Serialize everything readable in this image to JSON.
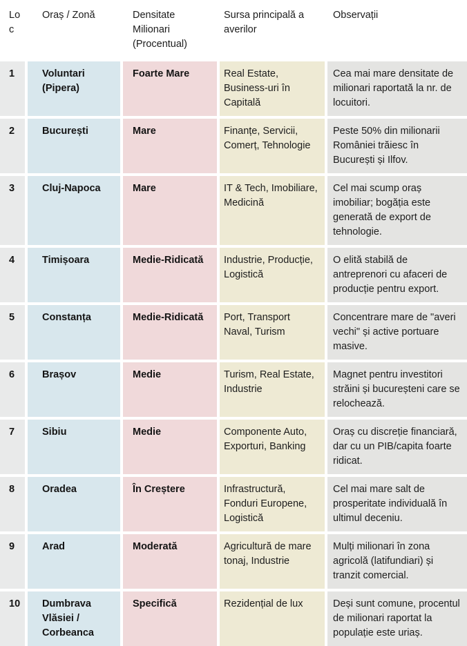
{
  "colors": {
    "rank_bg": "#e9eaea",
    "city_bg": "#d8e7ed",
    "density_bg": "#f0d9da",
    "source_bg": "#eeead4",
    "notes_bg": "#e4e4e2",
    "text": "#1d1d1d"
  },
  "table": {
    "headers": {
      "rank": "Loc",
      "city": "Oraș / Zonă",
      "density": "Densitate Milionari (Procentual)",
      "source": "Sursa principală a averilor",
      "notes": "Observații"
    },
    "rows": [
      {
        "rank": "1",
        "city": "Voluntari (Pipera)",
        "density": "Foarte Mare",
        "source": "Real Estate, Business-uri în Capitală",
        "notes": "Cea mai mare densitate de milionari raportată la nr. de locuitori."
      },
      {
        "rank": "2",
        "city": "București",
        "density": "Mare",
        "source": "Finanțe, Servicii, Comerț, Tehnologie",
        "notes": "Peste 50% din milionarii României trăiesc în București și Ilfov."
      },
      {
        "rank": "3",
        "city": "Cluj-Napoca",
        "density": "Mare",
        "source": "IT & Tech, Imobiliare, Medicină",
        "notes": "Cel mai scump oraș imobiliar; bogăția este generată de export de tehnologie."
      },
      {
        "rank": "4",
        "city": "Timișoara",
        "density": "Medie-Ridicată",
        "source": "Industrie, Producție, Logistică",
        "notes": "O elită stabilă de antreprenori cu afaceri de producție pentru export."
      },
      {
        "rank": "5",
        "city": "Constanța",
        "density": "Medie-Ridicată",
        "source": "Port, Transport Naval, Turism",
        "notes": "Concentrare mare de \"averi vechi\" și active portuare masive."
      },
      {
        "rank": "6",
        "city": "Brașov",
        "density": "Medie",
        "source": "Turism, Real Estate, Industrie",
        "notes": "Magnet pentru investitori străini și bucureșteni care se relochează."
      },
      {
        "rank": "7",
        "city": "Sibiu",
        "density": "Medie",
        "source": "Componente Auto, Exporturi, Banking",
        "notes": "Oraș cu discreție financiară, dar cu un PIB/capita foarte ridicat."
      },
      {
        "rank": "8",
        "city": "Oradea",
        "density": "În Creștere",
        "source": "Infrastructură, Fonduri Europene, Logistică",
        "notes": "Cel mai mare salt de prosperitate individuală în ultimul deceniu."
      },
      {
        "rank": "9",
        "city": "Arad",
        "density": "Moderată",
        "source": "Agricultură de mare tonaj, Industrie",
        "notes": "Mulți milionari în zona agricolă (latifundiari) și tranzit comercial."
      },
      {
        "rank": "10",
        "city": "Dumbrava Vlăsiei / Corbeanca",
        "density": "Specifică",
        "source": "Rezidențial de lux",
        "notes": "Deși sunt comune, procentul de milionari raportat la populație este uriaș."
      }
    ]
  }
}
